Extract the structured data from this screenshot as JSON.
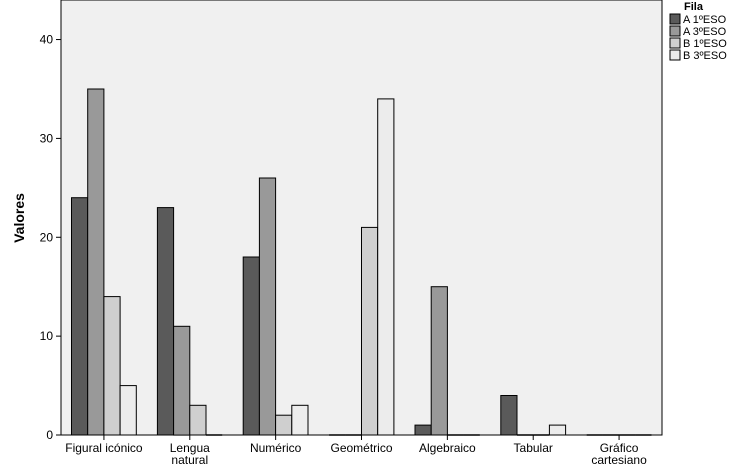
{
  "chart_data": {
    "type": "bar",
    "title": "",
    "xlabel": "",
    "ylabel": "Valores",
    "ylim": [
      0,
      44
    ],
    "yticks": [
      0,
      10,
      20,
      30,
      40
    ],
    "grid": false,
    "legend_position": "top-right",
    "legend_title": "Fila",
    "categories": [
      "Figural icónico",
      "Lengua\nnatural",
      "Numérico",
      "Geométrico",
      "Algebraico",
      "Tabular",
      "Gráfico\ncartesiano"
    ],
    "series": [
      {
        "name": "A 1ºESO",
        "color": "#5a5a5a",
        "values": [
          24,
          23,
          18,
          0,
          1,
          4,
          0
        ]
      },
      {
        "name": "A 3ºESO",
        "color": "#999999",
        "values": [
          35,
          11,
          26,
          0,
          15,
          0,
          0
        ]
      },
      {
        "name": "B 1ºESO",
        "color": "#cfcfcf",
        "values": [
          14,
          3,
          2,
          21,
          0,
          0,
          0
        ]
      },
      {
        "name": "B 3ºESO",
        "color": "#ececec",
        "values": [
          5,
          0,
          3,
          34,
          0,
          1,
          0
        ]
      }
    ]
  }
}
